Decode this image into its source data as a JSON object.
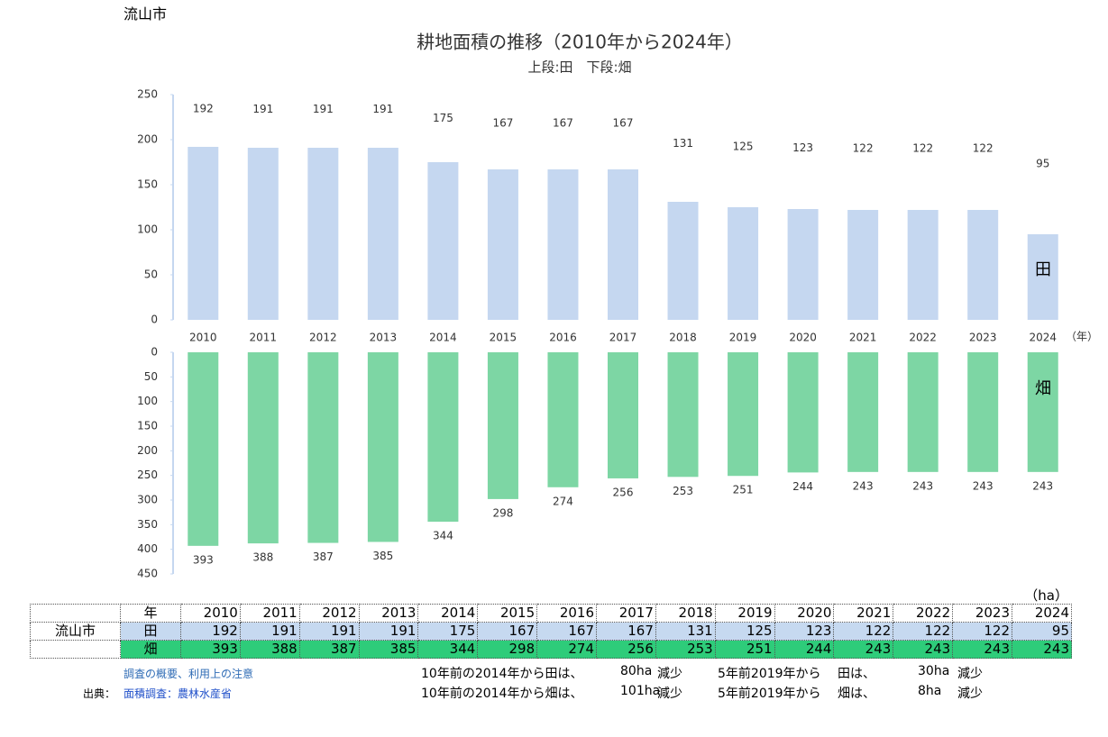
{
  "header": {
    "city": "流山市"
  },
  "chart_data": [
    {
      "type": "bar",
      "title": "耕地面積の推移（2010年から2024年）",
      "subtitle": "上段:田　下段:畑",
      "categories": [
        "2010",
        "2011",
        "2012",
        "2013",
        "2014",
        "2015",
        "2016",
        "2017",
        "2018",
        "2019",
        "2020",
        "2021",
        "2022",
        "2023",
        "2024"
      ],
      "x_unit": "（年）",
      "series": [
        {
          "name": "田",
          "color": "#c5d7f0",
          "values": [
            192,
            191,
            191,
            191,
            175,
            167,
            167,
            167,
            131,
            125,
            123,
            122,
            122,
            122,
            95
          ]
        }
      ],
      "ylim": [
        0,
        250
      ],
      "yticks": [
        0,
        50,
        100,
        150,
        200,
        250
      ],
      "inverted": false
    },
    {
      "type": "bar",
      "series": [
        {
          "name": "畑",
          "color": "#7dd6a4",
          "values": [
            393,
            388,
            387,
            385,
            344,
            298,
            274,
            256,
            253,
            251,
            244,
            243,
            243,
            243,
            243
          ]
        }
      ],
      "ylim": [
        0,
        450
      ],
      "yticks": [
        0,
        50,
        100,
        150,
        200,
        250,
        300,
        350,
        400,
        450
      ],
      "inverted": true
    }
  ],
  "table": {
    "unit": "（ha）",
    "header_label": "年",
    "years": [
      "2010",
      "2011",
      "2012",
      "2013",
      "2014",
      "2015",
      "2016",
      "2017",
      "2018",
      "2019",
      "2020",
      "2021",
      "2022",
      "2023",
      "2024"
    ],
    "rows": [
      {
        "city": "流山市",
        "type": "田",
        "values": [
          192,
          191,
          191,
          191,
          175,
          167,
          167,
          167,
          131,
          125,
          123,
          122,
          122,
          122,
          95
        ]
      },
      {
        "type": "畑",
        "values": [
          393,
          388,
          387,
          385,
          344,
          298,
          274,
          256,
          253,
          251,
          244,
          243,
          243,
          243,
          243
        ]
      }
    ]
  },
  "notes": {
    "overview_link": "調査の概要、利用上の注意",
    "source_label": "出典：",
    "source_link": "面積調査：農林水産省",
    "summary": [
      [
        "10年前の2014年から田は、",
        "80ha",
        "減少",
        "5年前2019年から",
        "田は、",
        "30ha",
        "減少"
      ],
      [
        "10年前の2014年から畑は、",
        "101ha",
        "減少",
        "5年前2019年から",
        "畑は、",
        "8ha",
        "減少"
      ]
    ]
  }
}
